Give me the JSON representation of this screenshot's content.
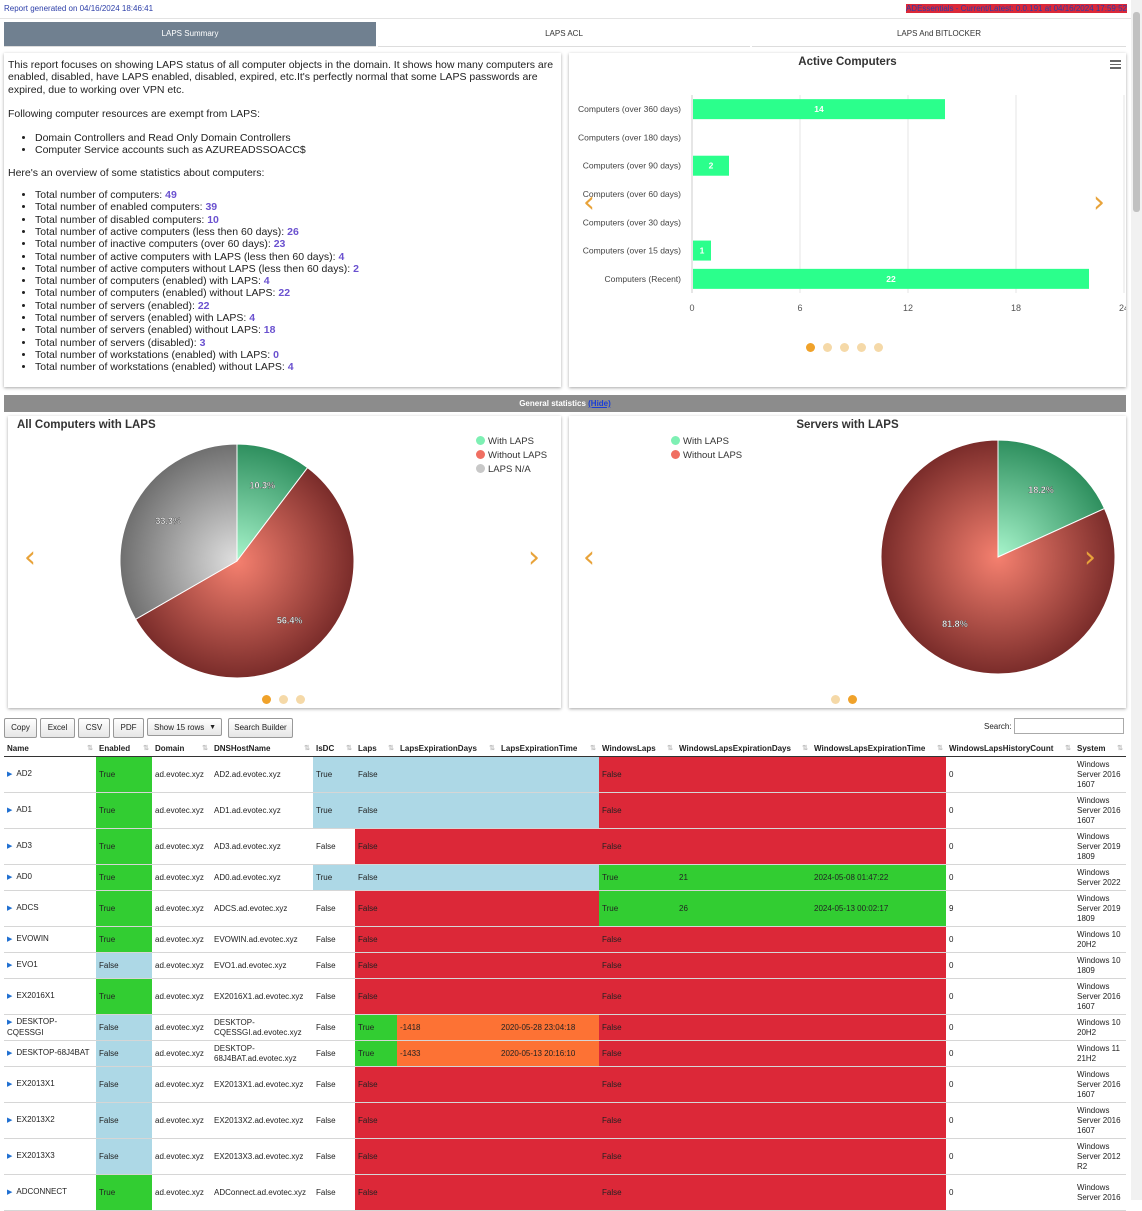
{
  "header": {
    "left": "Report generated on 04/16/2024 18:46:41",
    "right": "ADEssentials - Current/Latest: 0.0.191 at 04/16/2024 17:59:52"
  },
  "tabs": [
    "LAPS Summary",
    "LAPS ACL",
    "LAPS And BITLOCKER"
  ],
  "summary": {
    "intro": "This report focuses on showing LAPS status of all computer objects in the domain. It shows how many computers are enabled, disabled, have LAPS enabled, disabled, expired, etc.It's perfectly normal that some LAPS passwords are expired, due to working over VPN etc.",
    "exempt_title": "Following computer resources are exempt from LAPS:",
    "exempt": [
      "Domain Controllers and Read Only Domain Controllers",
      "Computer Service accounts such as AZUREADSSOACC$"
    ],
    "overview_title": "Here's an overview of some statistics about computers:",
    "stats": [
      {
        "label": "Total number of computers: ",
        "value": "49"
      },
      {
        "label": "Total number of enabled computers: ",
        "value": "39"
      },
      {
        "label": "Total number of disabled computers: ",
        "value": "10"
      },
      {
        "label": "Total number of active computers (less then 60 days): ",
        "value": "26"
      },
      {
        "label": "Total number of inactive computers (over 60 days): ",
        "value": "23"
      },
      {
        "label": "Total number of active computers with LAPS (less then 60 days): ",
        "value": "4"
      },
      {
        "label": "Total number of active computers without LAPS (less then 60 days): ",
        "value": "2"
      },
      {
        "label": "Total number of computers (enabled) with LAPS: ",
        "value": "4"
      },
      {
        "label": "Total number of computers (enabled) without LAPS: ",
        "value": "22"
      },
      {
        "label": "Total number of servers (enabled): ",
        "value": "22"
      },
      {
        "label": "Total number of servers (enabled) with LAPS: ",
        "value": "4"
      },
      {
        "label": "Total number of servers (enabled) without LAPS: ",
        "value": "18"
      },
      {
        "label": "Total number of servers (disabled): ",
        "value": "3"
      },
      {
        "label": "Total number of workstations (enabled) with LAPS: ",
        "value": "0"
      },
      {
        "label": "Total number of workstations (enabled) without LAPS: ",
        "value": "4"
      }
    ]
  },
  "section_bar": {
    "title": "General statistics",
    "hide": "(Hide)"
  },
  "chart_data": [
    {
      "type": "bar",
      "orientation": "horizontal",
      "title": "Active Computers",
      "categories": [
        "Computers (over 360 days)",
        "Computers (over 180 days)",
        "Computers (over 90 days)",
        "Computers (over 60 days)",
        "Computers (over 30 days)",
        "Computers (over 15 days)",
        "Computers (Recent)"
      ],
      "values": [
        14,
        0,
        2,
        0,
        0,
        1,
        22
      ],
      "xlim": [
        0,
        24
      ],
      "xticks": [
        "0",
        "6",
        "12",
        "18",
        "24"
      ],
      "color": "#2bff8c"
    },
    {
      "type": "pie",
      "title": "All Computers with LAPS",
      "labels": [
        "With LAPS",
        "Without LAPS",
        "LAPS N/A"
      ],
      "values": [
        10.3,
        56.4,
        33.3
      ],
      "value_labels": [
        "10.3%",
        "56.4%",
        "33.3%"
      ],
      "colors": [
        "#5fd39a",
        "#c0443c",
        "#a8a8a8"
      ]
    },
    {
      "type": "pie",
      "title": "Servers with LAPS",
      "labels": [
        "With LAPS",
        "Without LAPS"
      ],
      "values": [
        18.2,
        81.8
      ],
      "value_labels": [
        "18.2%",
        "81.8%"
      ],
      "colors": [
        "#5fd39a",
        "#c0443c"
      ]
    }
  ],
  "toolbar": {
    "buttons": [
      "Copy",
      "Excel",
      "CSV",
      "PDF",
      "Show 15 rows",
      "Search Builder"
    ],
    "search_label": "Search:"
  },
  "table": {
    "columns": [
      "Name",
      "Enabled",
      "Domain",
      "DNSHostName",
      "IsDC",
      "Laps",
      "LapsExpirationDays",
      "LapsExpirationTime",
      "WindowsLaps",
      "WindowsLapsExpirationDays",
      "WindowsLapsExpirationTime",
      "WindowsLapsHistoryCount",
      "System"
    ],
    "rows": [
      [
        "AD2",
        "True",
        "ad.evotec.xyz",
        "AD2.ad.evotec.xyz",
        "True",
        "False",
        "",
        "",
        "False",
        "",
        "",
        "0",
        "Windows Server 2016 1607"
      ],
      [
        "AD1",
        "True",
        "ad.evotec.xyz",
        "AD1.ad.evotec.xyz",
        "True",
        "False",
        "",
        "",
        "False",
        "",
        "",
        "0",
        "Windows Server 2016 1607"
      ],
      [
        "AD3",
        "True",
        "ad.evotec.xyz",
        "AD3.ad.evotec.xyz",
        "False",
        "False",
        "",
        "",
        "False",
        "",
        "",
        "0",
        "Windows Server 2019 1809"
      ],
      [
        "AD0",
        "True",
        "ad.evotec.xyz",
        "AD0.ad.evotec.xyz",
        "True",
        "False",
        "",
        "",
        "True",
        "21",
        "2024-05-08 01:47:22",
        "0",
        "Windows Server 2022"
      ],
      [
        "ADCS",
        "True",
        "ad.evotec.xyz",
        "ADCS.ad.evotec.xyz",
        "False",
        "False",
        "",
        "",
        "True",
        "26",
        "2024-05-13 00:02:17",
        "9",
        "Windows Server 2019 1809"
      ],
      [
        "EVOWIN",
        "True",
        "ad.evotec.xyz",
        "EVOWIN.ad.evotec.xyz",
        "False",
        "False",
        "",
        "",
        "False",
        "",
        "",
        "0",
        "Windows 10 20H2"
      ],
      [
        "EVO1",
        "False",
        "ad.evotec.xyz",
        "EVO1.ad.evotec.xyz",
        "False",
        "False",
        "",
        "",
        "False",
        "",
        "",
        "0",
        "Windows 10 1809"
      ],
      [
        "EX2016X1",
        "True",
        "ad.evotec.xyz",
        "EX2016X1.ad.evotec.xyz",
        "False",
        "False",
        "",
        "",
        "False",
        "",
        "",
        "0",
        "Windows Server 2016 1607"
      ],
      [
        "DESKTOP-CQESSGI",
        "False",
        "ad.evotec.xyz",
        "DESKTOP-CQESSGI.ad.evotec.xyz",
        "False",
        "True",
        "-1418",
        "2020-05-28 23:04:18",
        "False",
        "",
        "",
        "0",
        "Windows 10 20H2"
      ],
      [
        "DESKTOP-68J4BAT",
        "False",
        "ad.evotec.xyz",
        "DESKTOP-68J4BAT.ad.evotec.xyz",
        "False",
        "True",
        "-1433",
        "2020-05-13 20:16:10",
        "False",
        "",
        "",
        "0",
        "Windows 11 21H2"
      ],
      [
        "EX2013X1",
        "False",
        "ad.evotec.xyz",
        "EX2013X1.ad.evotec.xyz",
        "False",
        "False",
        "",
        "",
        "False",
        "",
        "",
        "0",
        "Windows Server 2016 1607"
      ],
      [
        "EX2013X2",
        "False",
        "ad.evotec.xyz",
        "EX2013X2.ad.evotec.xyz",
        "False",
        "False",
        "",
        "",
        "False",
        "",
        "",
        "0",
        "Windows Server 2016 1607"
      ],
      [
        "EX2013X3",
        "False",
        "ad.evotec.xyz",
        "EX2013X3.ad.evotec.xyz",
        "False",
        "False",
        "",
        "",
        "False",
        "",
        "",
        "0",
        "Windows Server 2012 R2"
      ],
      [
        "ADCONNECT",
        "True",
        "ad.evotec.xyz",
        "ADConnect.ad.evotec.xyz",
        "False",
        "False",
        "",
        "",
        "False",
        "",
        "",
        "0",
        "Windows Server 2016"
      ]
    ],
    "colors": {
      "green": "#32cd32",
      "blue": "#add8e6",
      "red": "#dc2838",
      "orange": "#fd7234"
    }
  }
}
